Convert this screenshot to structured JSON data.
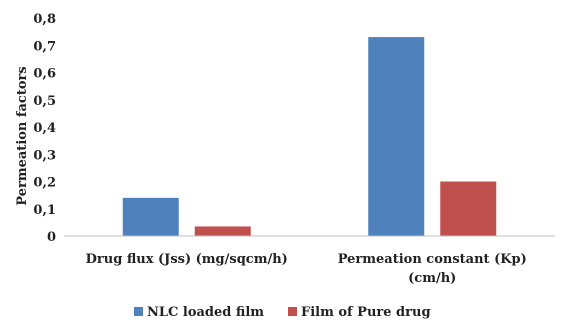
{
  "chart_data": {
    "type": "bar",
    "categories": [
      [
        "Drug flux (Jss) (mg/sqcm/h)"
      ],
      [
        "Permeation constant (Kp)",
        "(cm/h)"
      ]
    ],
    "series": [
      {
        "name": "NLC loaded film",
        "values": [
          0.14,
          0.73
        ],
        "color": "#4f81bd"
      },
      {
        "name": "Film of Pure drug",
        "values": [
          0.035,
          0.2
        ],
        "color": "#c0504d"
      }
    ],
    "ylabel": "Permeation factors",
    "ylim": [
      0,
      0.8
    ],
    "yticks": [
      "0",
      "0,1",
      "0,2",
      "0,3",
      "0,4",
      "0,5",
      "0,6",
      "0,7",
      "0,8"
    ],
    "grid": false,
    "legend_position": "bottom"
  }
}
